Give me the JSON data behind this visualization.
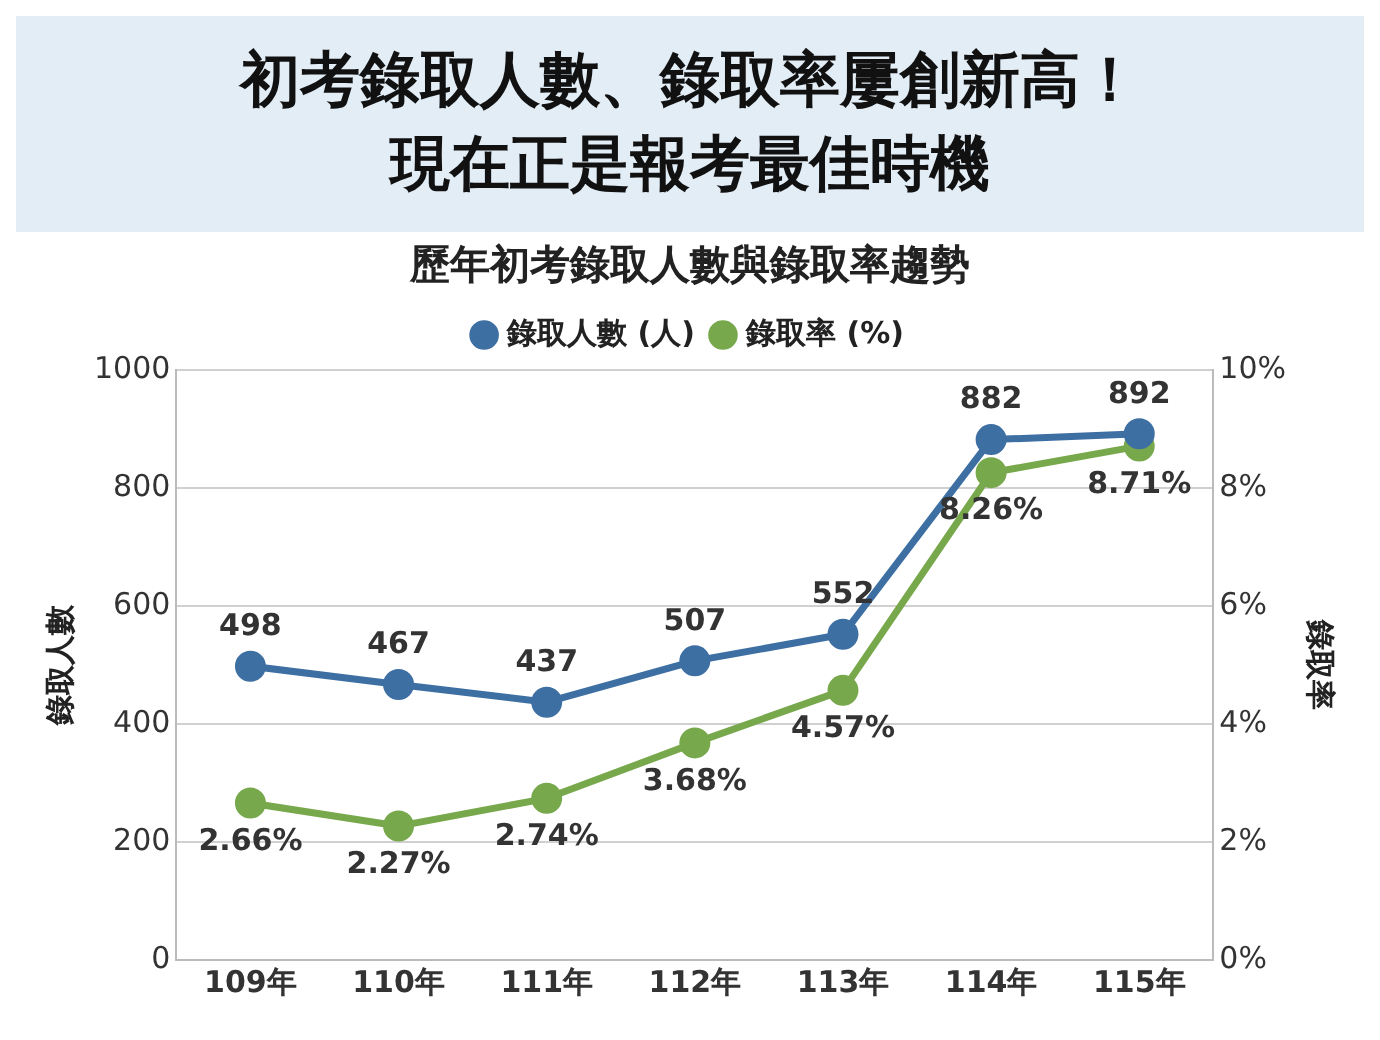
{
  "chart_data": {
    "type": "line",
    "title": "初考錄取人數、錄取率屢創新高！現在正是報考最佳時機",
    "subtitle": "歷年初考錄取人數與錄取率趨勢",
    "ylabel": "錄取人數",
    "y2label": "錄取率",
    "categories": [
      "109年",
      "110年",
      "111年",
      "112年",
      "113年",
      "114年",
      "115年"
    ],
    "series": [
      {
        "name": "錄取人數 (人)",
        "color": "#3d6fa3",
        "values": [
          498,
          467,
          437,
          507,
          552,
          882,
          892
        ],
        "value_labels": [
          "498",
          "467",
          "437",
          "507",
          "552",
          "882",
          "892"
        ]
      },
      {
        "name": "錄取率 (%)",
        "color": "#78a84c",
        "axis": "y2",
        "values": [
          2.66,
          2.27,
          2.74,
          3.68,
          4.57,
          8.26,
          8.71
        ],
        "value_labels": [
          "2.66%",
          "2.27%",
          "2.74%",
          "3.68%",
          "4.57%",
          "8.26%",
          "8.71%"
        ]
      }
    ],
    "ylim": [
      0,
      1000
    ],
    "yticks": [
      0,
      200,
      400,
      600,
      800,
      1000
    ],
    "y2lim": [
      0,
      10
    ],
    "y2ticks": [
      {
        "value": 0,
        "label": "0%"
      },
      {
        "value": 2,
        "label": "2%"
      },
      {
        "value": 4,
        "label": "4%"
      },
      {
        "value": 6,
        "label": "6%"
      },
      {
        "value": 8,
        "label": "8%"
      },
      {
        "value": 10,
        "label": "10%"
      }
    ],
    "grid": "y",
    "legend": "top",
    "marker": "circle",
    "line_style": "solid"
  }
}
